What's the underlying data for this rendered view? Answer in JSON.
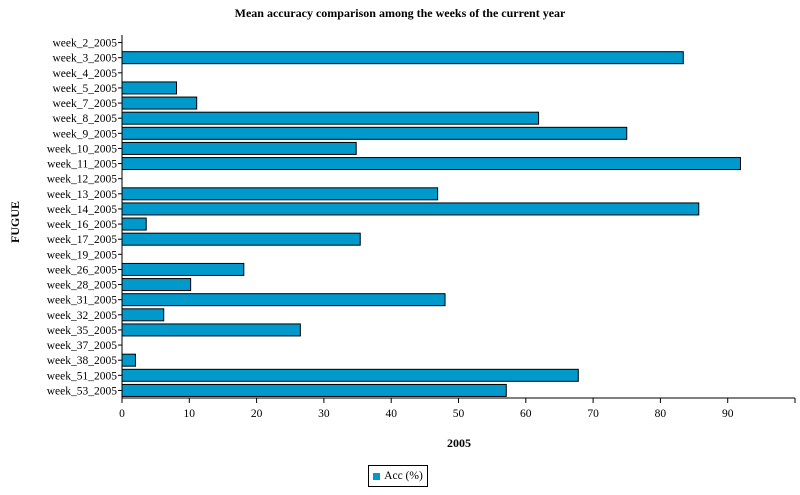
{
  "colors": {
    "bar": "#0099cc"
  },
  "chart_data": {
    "type": "bar",
    "orientation": "horizontal",
    "title": "Mean accuracy comparison among the weeks of the current year",
    "xlabel": "2005",
    "ylabel": "FUGUE",
    "xlim": [
      0,
      100
    ],
    "xticks": [
      0,
      10,
      20,
      30,
      40,
      50,
      60,
      70,
      80,
      90
    ],
    "grid": false,
    "legend_position": "bottom-center",
    "categories": [
      "week_2_2005",
      "week_3_2005",
      "week_4_2005",
      "week_5_2005",
      "week_7_2005",
      "week_8_2005",
      "week_9_2005",
      "week_10_2005",
      "week_11_2005",
      "week_12_2005",
      "week_13_2005",
      "week_14_2005",
      "week_16_2005",
      "week_17_2005",
      "week_19_2005",
      "week_26_2005",
      "week_28_2005",
      "week_31_2005",
      "week_32_2005",
      "week_35_2005",
      "week_37_2005",
      "week_38_2005",
      "week_51_2005",
      "week_53_2005"
    ],
    "series": [
      {
        "name": "Acc (%)",
        "values": [
          0,
          83.4,
          0,
          8.1,
          11.1,
          61.9,
          75.0,
          34.8,
          91.9,
          0,
          46.9,
          85.7,
          3.6,
          35.4,
          0,
          18.1,
          10.2,
          48.0,
          6.2,
          26.5,
          0,
          2.0,
          67.8,
          57.1
        ]
      }
    ]
  }
}
